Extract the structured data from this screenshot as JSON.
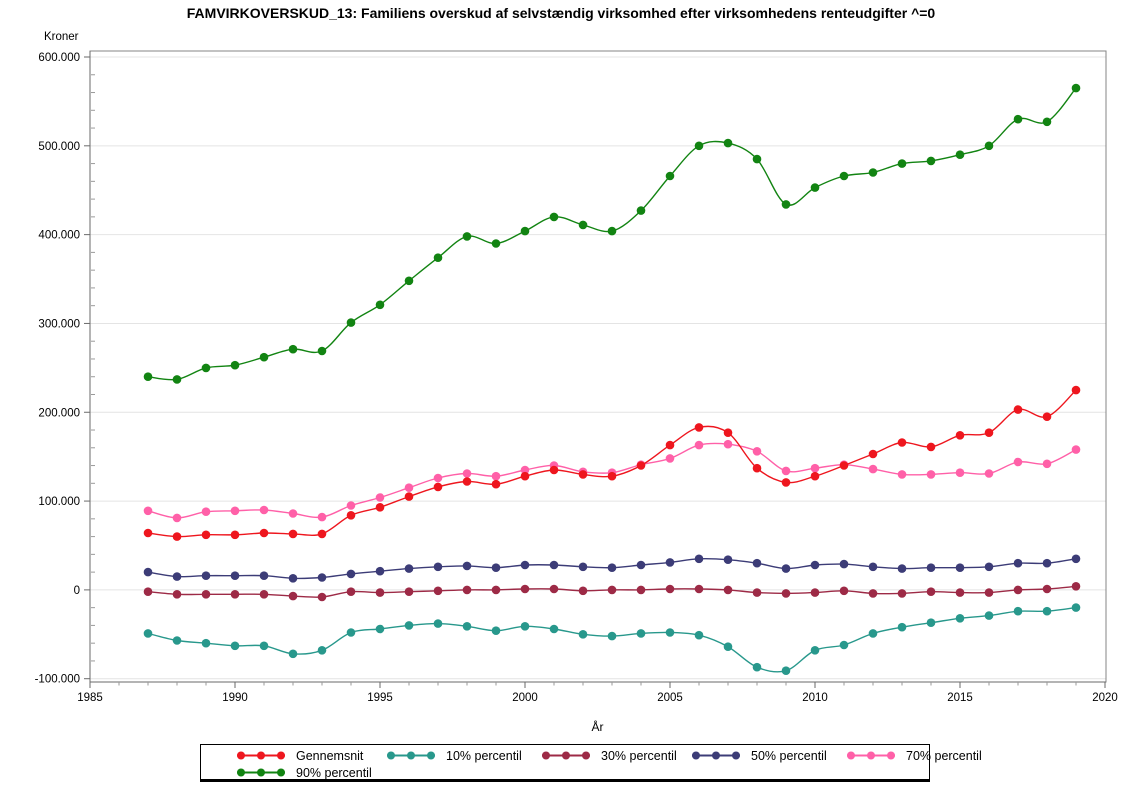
{
  "title": "FAMVIRKOVERSKUD_13: Familiens overskud af selvstændig virksomhed efter virksomhedens renteudgifter ^=0",
  "chart_data": {
    "type": "line",
    "title": "FAMVIRKOVERSKUD_13: Familiens overskud af selvstændig virksomhed efter virksomhedens renteudgifter ^=0",
    "xlabel": "År",
    "ylabel": "Kroner",
    "grid": "horizontal",
    "legend_position": "bottom",
    "xlim": [
      1985,
      2020
    ],
    "ylim": [
      -100000,
      600000
    ],
    "x_major_ticks": [
      1985,
      1990,
      1995,
      2000,
      2005,
      2010,
      2015,
      2020
    ],
    "x_minor_tick_step": 1,
    "y_major_ticks": [
      600000,
      500000,
      400000,
      300000,
      200000,
      100000,
      0,
      -100000
    ],
    "y_tick_labels": [
      "600.000",
      "500.000",
      "400.000",
      "300.000",
      "200.000",
      "100.000",
      "0",
      "-100.000"
    ],
    "y_minor_tick_step": 20000,
    "x": [
      1987,
      1988,
      1989,
      1990,
      1991,
      1992,
      1993,
      1994,
      1995,
      1996,
      1997,
      1998,
      1999,
      2000,
      2001,
      2002,
      2003,
      2004,
      2005,
      2006,
      2007,
      2008,
      2009,
      2010,
      2011,
      2012,
      2013,
      2014,
      2015,
      2016,
      2017,
      2018,
      2019
    ],
    "series": [
      {
        "name": "Gennemsnit",
        "color": "#ee161e",
        "values": [
          64000,
          60000,
          62000,
          62000,
          64000,
          63000,
          63000,
          84000,
          93000,
          105000,
          116000,
          122000,
          119000,
          128000,
          135000,
          130000,
          128000,
          140000,
          163000,
          183000,
          177000,
          137000,
          121000,
          128000,
          140000,
          153000,
          166000,
          161000,
          174000,
          177000,
          203000,
          195000,
          225000
        ]
      },
      {
        "name": "10% percentil",
        "color": "#28988c",
        "values": [
          -49000,
          -57000,
          -60000,
          -63000,
          -63000,
          -72000,
          -68000,
          -48000,
          -44000,
          -40000,
          -38000,
          -41000,
          -46000,
          -41000,
          -44000,
          -50000,
          -52000,
          -49000,
          -48000,
          -51000,
          -64000,
          -87000,
          -91000,
          -68000,
          -62000,
          -49000,
          -42000,
          -37000,
          -32000,
          -29000,
          -24000,
          -24000,
          -20000
        ]
      },
      {
        "name": "30% percentil",
        "color": "#9d2a46",
        "values": [
          -2000,
          -5000,
          -5000,
          -5000,
          -5000,
          -7000,
          -8000,
          -2000,
          -3000,
          -2000,
          -1000,
          0,
          0,
          1000,
          1000,
          -1000,
          0,
          0,
          1000,
          1000,
          0,
          -3000,
          -4000,
          -3000,
          -1000,
          -4000,
          -4000,
          -2000,
          -3000,
          -3000,
          0,
          1000,
          4000
        ]
      },
      {
        "name": "50% percentil",
        "color": "#3c3c77",
        "values": [
          20000,
          15000,
          16000,
          16000,
          16000,
          13000,
          14000,
          18000,
          21000,
          24000,
          26000,
          27000,
          25000,
          28000,
          28000,
          26000,
          25000,
          28000,
          31000,
          35000,
          34000,
          30000,
          24000,
          28000,
          29000,
          26000,
          24000,
          25000,
          25000,
          26000,
          30000,
          30000,
          35000
        ]
      },
      {
        "name": "70% percentil",
        "color": "#ff60a8",
        "values": [
          89000,
          81000,
          88000,
          89000,
          90000,
          86000,
          82000,
          95000,
          104000,
          115000,
          126000,
          131000,
          128000,
          135000,
          140000,
          133000,
          132000,
          141000,
          148000,
          163000,
          164000,
          156000,
          134000,
          137000,
          141000,
          136000,
          130000,
          130000,
          132000,
          131000,
          144000,
          142000,
          158000
        ]
      },
      {
        "name": "90% percentil",
        "color": "#128412",
        "values": [
          240000,
          237000,
          250000,
          253000,
          262000,
          271000,
          269000,
          301000,
          321000,
          348000,
          374000,
          398000,
          390000,
          404000,
          420000,
          411000,
          404000,
          427000,
          466000,
          500000,
          503000,
          485000,
          434000,
          453000,
          466000,
          470000,
          480000,
          483000,
          490000,
          500000,
          530000,
          527000,
          565000
        ]
      }
    ],
    "colors": {
      "grid": "#e4e4e4",
      "frame": "#848484",
      "axis": "#6a6a6a",
      "tick_label": "#000000"
    }
  }
}
